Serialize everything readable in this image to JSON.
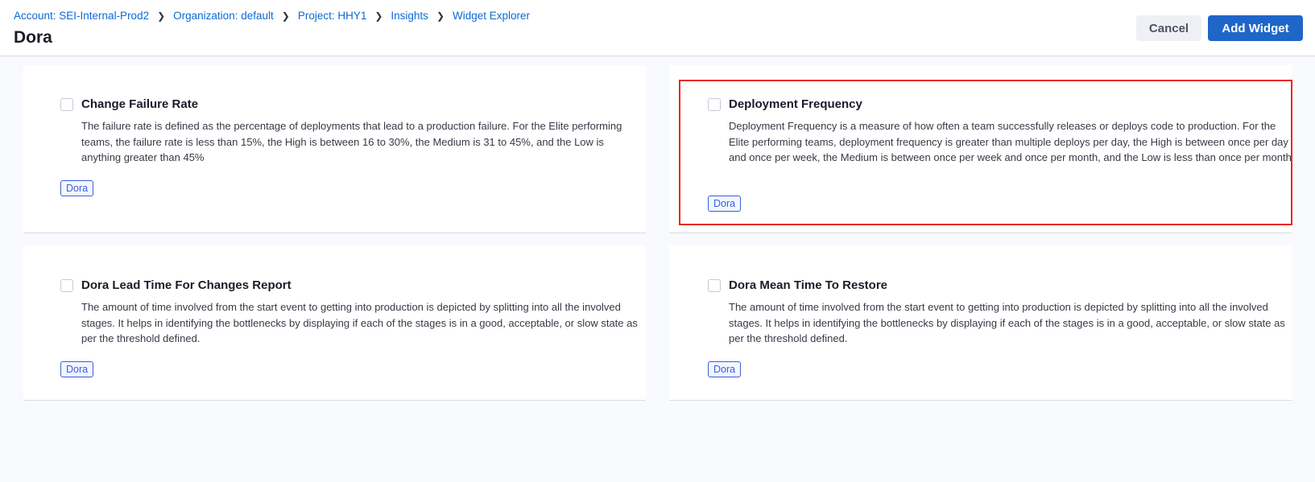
{
  "breadcrumb": [
    "Account: SEI-Internal-Prod2",
    "Organization: default",
    "Project: HHY1",
    "Insights",
    "Widget Explorer"
  ],
  "page_title": "Dora",
  "buttons": {
    "cancel": "Cancel",
    "add": "Add Widget"
  },
  "colors": {
    "primary": "#1f66c9",
    "highlight": "#e8291f",
    "tag": "#3b5fd8"
  },
  "cards": [
    {
      "title": "Change Failure Rate",
      "description": "The failure rate is defined as the percentage of deployments that lead to a production failure. For the Elite performing teams, the failure rate is less than 15%, the High is between 16 to 30%, the Medium is 31 to 45%, and the Low is anything greater than 45%",
      "tag": "Dora",
      "checked": false
    },
    {
      "title": "Deployment Frequency",
      "description": "Deployment Frequency is a measure of how often a team successfully releases or deploys code to production. For the Elite performing teams, deployment frequency is greater than multiple deploys per day, the High is between once per day and once per week, the Medium is between once per week and once per month, and the Low is less than once per month",
      "tag": "Dora",
      "checked": false,
      "highlighted": true
    },
    {
      "title": "Dora Lead Time For Changes Report",
      "description": "The amount of time involved from the start event to getting into production is depicted by splitting into all the involved stages. It helps in identifying the bottlenecks by displaying if each of the stages is in a good, acceptable, or slow state as per the threshold defined.",
      "tag": "Dora",
      "checked": false
    },
    {
      "title": "Dora Mean Time To Restore",
      "description": "The amount of time involved from the start event to getting into production is depicted by splitting into all the involved stages. It helps in identifying the bottlenecks by displaying if each of the stages is in a good, acceptable, or slow state as per the threshold defined.",
      "tag": "Dora",
      "checked": false
    }
  ]
}
